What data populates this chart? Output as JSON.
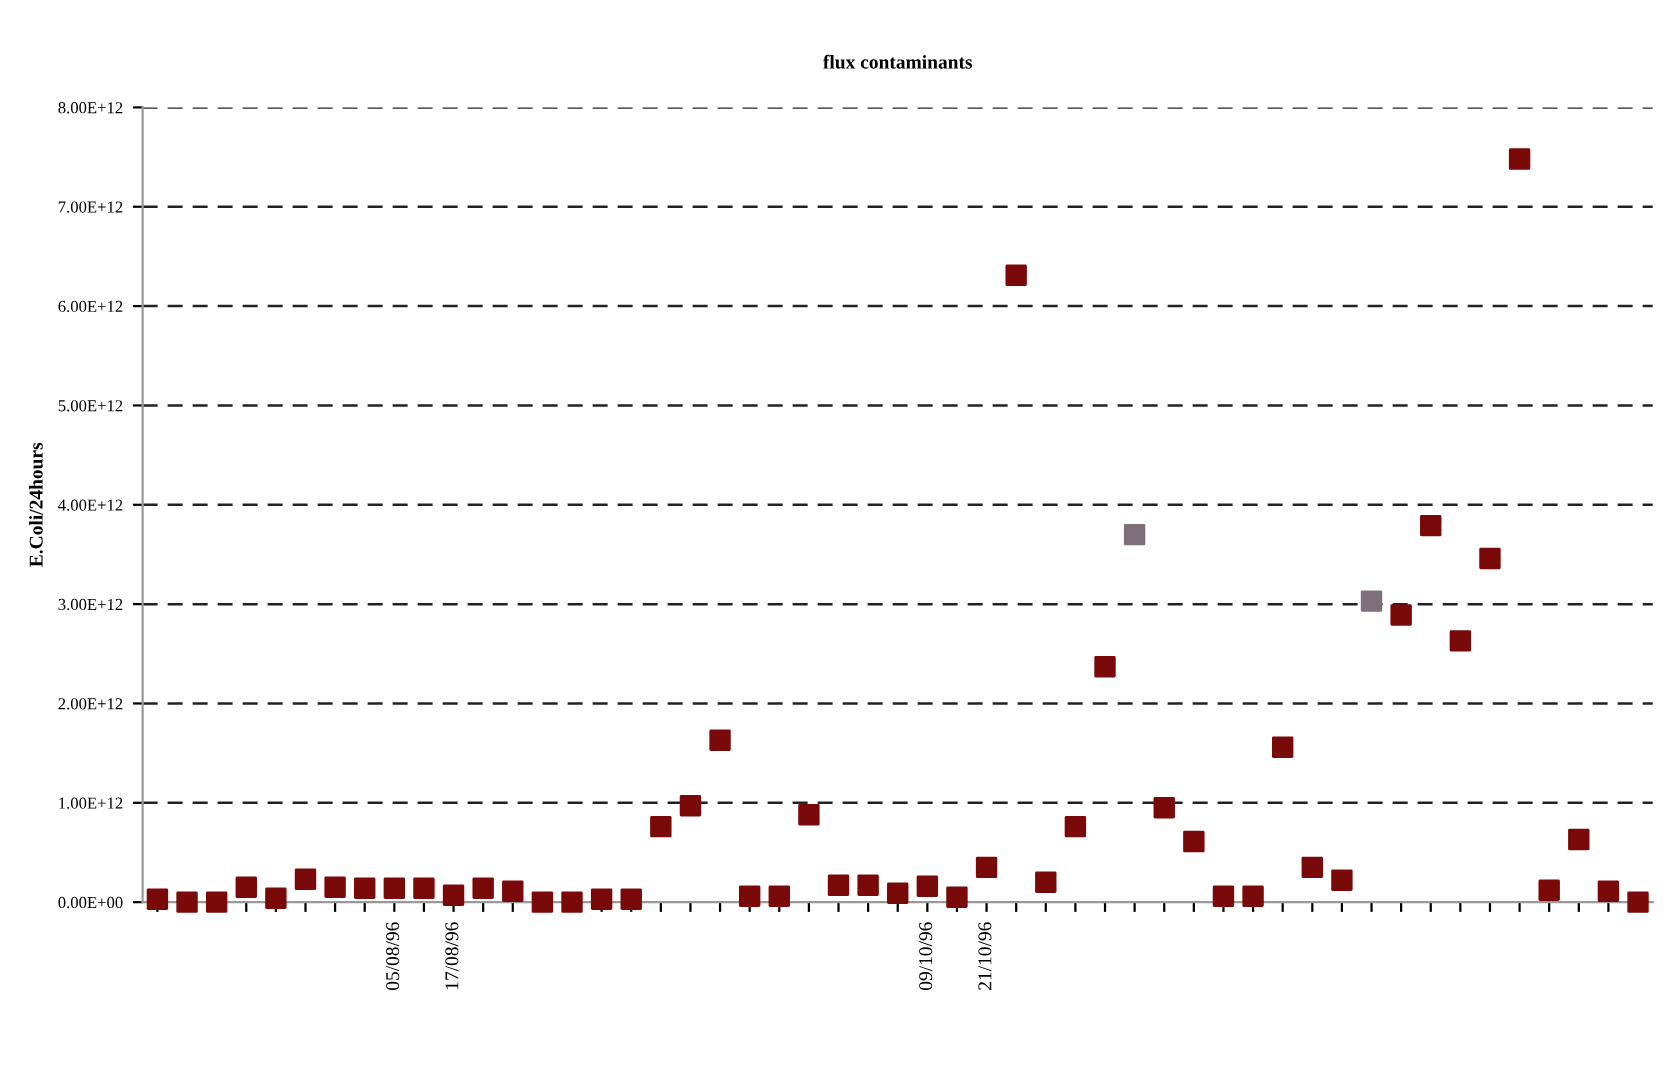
{
  "chart_data": {
    "type": "scatter",
    "title": "flux contaminants",
    "ylabel": "E.Coli/24hours",
    "categories": [
      null,
      null,
      null,
      null,
      null,
      null,
      null,
      null,
      "05/08/96",
      null,
      "17/08/96",
      null,
      null,
      null,
      null,
      null,
      null,
      null,
      null,
      null,
      null,
      null,
      null,
      null,
      null,
      null,
      "09/10/96",
      null,
      "21/10/96",
      null,
      null,
      null,
      null,
      null,
      null,
      null,
      null,
      null,
      null,
      null,
      null,
      null,
      null,
      null,
      null,
      null,
      null,
      null,
      null,
      null,
      null
    ],
    "values": [
      30000000000.0,
      0,
      0,
      150000000000.0,
      40000000000.0,
      230000000000.0,
      150000000000.0,
      140000000000.0,
      140000000000.0,
      140000000000.0,
      70000000000.0,
      140000000000.0,
      110000000000.0,
      0,
      0,
      30000000000.0,
      30000000000.0,
      760000000000.0,
      970000000000.0,
      1630000000000.0,
      60000000000.0,
      60000000000.0,
      880000000000.0,
      170000000000.0,
      170000000000.0,
      90000000000.0,
      160000000000.0,
      50000000000.0,
      350000000000.0,
      6310000000000.0,
      200000000000.0,
      760000000000.0,
      2370000000000.0,
      3700000000000.0,
      950000000000.0,
      610000000000.0,
      60000000000.0,
      60000000000.0,
      1560000000000.0,
      350000000000.0,
      220000000000.0,
      3030000000000.0,
      2890000000000.0,
      3790000000000.0,
      2630000000000.0,
      3460000000000.0,
      7480000000000.0,
      120000000000.0,
      630000000000.0,
      110000000000.0,
      0
    ],
    "colors": [
      "#7a0a0a",
      "#7a0a0a",
      "#7a0a0a",
      "#7a0a0a",
      "#7a0a0a",
      "#7a0a0a",
      "#7a0a0a",
      "#7a0a0a",
      "#7a0a0a",
      "#7a0a0a",
      "#7a0a0a",
      "#7a0a0a",
      "#7a0a0a",
      "#7a0a0a",
      "#7a0a0a",
      "#7a0a0a",
      "#7a0a0a",
      "#7a0a0a",
      "#7a0a0a",
      "#7a0a0a",
      "#7a0a0a",
      "#7a0a0a",
      "#7a0a0a",
      "#7a0a0a",
      "#7a0a0a",
      "#7a0a0a",
      "#7a0a0a",
      "#7a0a0a",
      "#7a0a0a",
      "#7a0a0a",
      "#7a0a0a",
      "#7a0a0a",
      "#7a0a0a",
      "#7f6f78",
      "#7a0a0a",
      "#7a0a0a",
      "#7a0a0a",
      "#7a0a0a",
      "#7a0a0a",
      "#7a0a0a",
      "#7a0a0a",
      "#7f6f78",
      "#7a0a0a",
      "#7a0a0a",
      "#7a0a0a",
      "#7a0a0a",
      "#7a0a0a",
      "#7a0a0a",
      "#7a0a0a",
      "#7a0a0a",
      "#7a0a0a"
    ],
    "ylim": [
      0,
      8000000000000.0
    ],
    "yticks": [
      {
        "value": 0,
        "label": "0.00E+00"
      },
      {
        "value": 1000000000000.0,
        "label": "1.00E+12"
      },
      {
        "value": 2000000000000.0,
        "label": "2.00E+12"
      },
      {
        "value": 3000000000000.0,
        "label": "3.00E+12"
      },
      {
        "value": 4000000000000.0,
        "label": "4.00E+12"
      },
      {
        "value": 5000000000000.0,
        "label": "5.00E+12"
      },
      {
        "value": 6000000000000.0,
        "label": "6.00E+12"
      },
      {
        "value": 7000000000000.0,
        "label": "7.00E+12"
      },
      {
        "value": 8000000000000.0,
        "label": "8.00E+12"
      }
    ],
    "grid": "y",
    "marker": "square",
    "legend": false
  }
}
